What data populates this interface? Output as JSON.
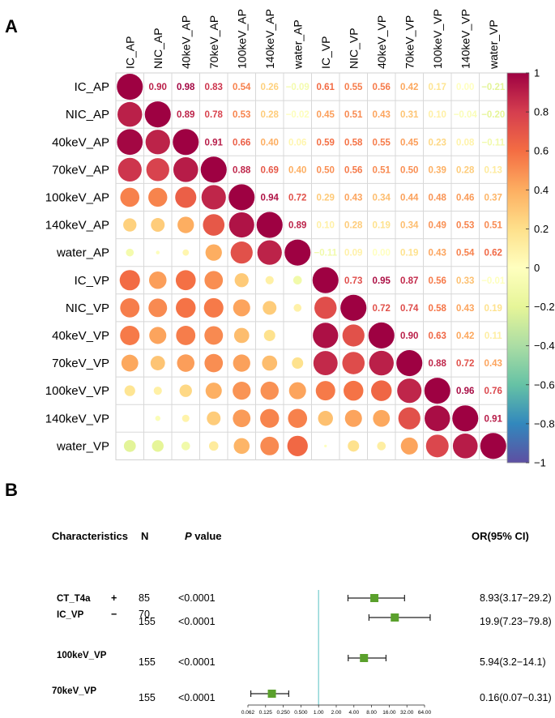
{
  "panel_a_label": "A",
  "panel_b_label": "B",
  "chart_data": [
    {
      "type": "heatmap",
      "subtype": "correlation-matrix-circles-lower-numbers-upper",
      "variables": [
        "IC_AP",
        "NIC_AP",
        "40keV_AP",
        "70keV_AP",
        "100keV_AP",
        "140keV_AP",
        "water_AP",
        "IC_VP",
        "NIC_VP",
        "40keV_VP",
        "70keV_VP",
        "100keV_VP",
        "140keV_VP",
        "water_VP"
      ],
      "matrix": [
        [
          1,
          0.9,
          0.98,
          0.83,
          0.54,
          0.26,
          -0.09,
          0.61,
          0.55,
          0.56,
          0.42,
          0.17,
          0.0,
          -0.21
        ],
        [
          0.9,
          1,
          0.89,
          0.78,
          0.53,
          0.28,
          -0.02,
          0.45,
          0.51,
          0.43,
          0.31,
          0.1,
          -0.04,
          -0.2
        ],
        [
          0.98,
          0.89,
          1,
          0.91,
          0.66,
          0.4,
          0.06,
          0.59,
          0.58,
          0.55,
          0.45,
          0.23,
          0.08,
          -0.11
        ],
        [
          0.83,
          0.78,
          0.91,
          1,
          0.88,
          0.69,
          0.4,
          0.5,
          0.56,
          0.51,
          0.5,
          0.39,
          0.28,
          0.13
        ],
        [
          0.54,
          0.53,
          0.66,
          0.88,
          1,
          0.94,
          0.72,
          0.29,
          0.43,
          0.34,
          0.44,
          0.48,
          0.46,
          0.37
        ],
        [
          0.26,
          0.28,
          0.4,
          0.69,
          0.94,
          1,
          0.89,
          0.1,
          0.28,
          0.19,
          0.34,
          0.49,
          0.53,
          0.51
        ],
        [
          -0.09,
          -0.02,
          0.06,
          0.4,
          0.72,
          0.89,
          1,
          -0.11,
          0.09,
          0.0,
          0.19,
          0.43,
          0.54,
          0.62
        ],
        [
          0.61,
          0.45,
          0.59,
          0.5,
          0.29,
          0.1,
          -0.11,
          1,
          0.73,
          0.95,
          0.87,
          0.56,
          0.33,
          -0.01
        ],
        [
          0.55,
          0.51,
          0.58,
          0.56,
          0.43,
          0.28,
          0.09,
          0.73,
          1,
          0.72,
          0.74,
          0.58,
          0.43,
          0.19
        ],
        [
          0.56,
          0.43,
          0.55,
          0.51,
          0.34,
          0.19,
          0.0,
          0.95,
          0.72,
          1,
          0.9,
          0.63,
          0.42,
          0.11
        ],
        [
          0.42,
          0.31,
          0.45,
          0.5,
          0.44,
          0.34,
          0.19,
          0.87,
          0.74,
          0.9,
          1,
          0.88,
          0.72,
          0.43
        ],
        [
          0.17,
          0.1,
          0.23,
          0.39,
          0.48,
          0.49,
          0.43,
          0.56,
          0.58,
          0.63,
          0.88,
          1,
          0.96,
          0.76
        ],
        [
          0.0,
          -0.04,
          0.08,
          0.28,
          0.46,
          0.53,
          0.54,
          0.33,
          0.43,
          0.42,
          0.72,
          0.96,
          1,
          0.91
        ],
        [
          -0.21,
          -0.2,
          -0.11,
          0.13,
          0.37,
          0.51,
          0.62,
          -0.01,
          0.19,
          0.11,
          0.43,
          0.76,
          0.91,
          1
        ]
      ],
      "colorbar": {
        "range": [
          -1,
          1
        ],
        "ticks": [
          1,
          0.8,
          0.6,
          0.4,
          0.2,
          0,
          -0.2,
          -0.4,
          -0.6,
          -0.8,
          -1
        ],
        "tick_labels": [
          "1",
          "0.8",
          "0.6",
          "0.4",
          "0.2",
          "0",
          "−0.2",
          "−0.4",
          "−0.6",
          "−0.8",
          "−1"
        ],
        "colors": [
          "#5e4fa2",
          "#3288bd",
          "#66c2a5",
          "#abdda4",
          "#e6f598",
          "#ffffbf",
          "#fee08b",
          "#fdae61",
          "#f46d43",
          "#d53e4f",
          "#9e0142"
        ]
      }
    },
    {
      "type": "forest",
      "headers": {
        "characteristics": "Characteristics",
        "n": "N",
        "p_letter": "P",
        "p_rest": " value",
        "or": "OR(95% CI)"
      },
      "rows": [
        {
          "label": "CT_T4a",
          "levels": [
            {
              "sign": "+",
              "n": "85"
            },
            {
              "sign": "−",
              "n": "70"
            }
          ],
          "p": "<0.0001",
          "or": 8.93,
          "lo": 3.17,
          "hi": 29.2,
          "or_text": "8.93(3.17−29.2)"
        },
        {
          "label": "IC_VP",
          "n": "155",
          "p": "<0.0001",
          "or": 19.9,
          "lo": 7.23,
          "hi": 79.8,
          "or_text": "19.9(7.23−79.8)"
        },
        {
          "label": "100keV_VP",
          "n": "155",
          "p": "<0.0001",
          "or": 5.94,
          "lo": 3.2,
          "hi": 14.1,
          "or_text": "5.94(3.2−14.1)"
        },
        {
          "label": "70keV_VP",
          "n": "155",
          "p": "<0.0001",
          "or": 0.16,
          "lo": 0.07,
          "hi": 0.31,
          "or_text": "0.16(0.07−0.31)"
        }
      ],
      "x_scale": "log2",
      "x_ticks": [
        0.0625,
        0.125,
        0.25,
        0.5,
        1,
        2,
        4,
        8,
        16,
        32,
        64
      ],
      "x_tick_labels": [
        "0.062",
        "0.125",
        "0.250",
        "0.500",
        "1.00",
        "2.00",
        "4.00",
        "8.00",
        "16.00",
        "32.00",
        "64.00"
      ],
      "reference_line": 1,
      "marker_color": "#5aa02c",
      "reference_line_color": "#7ecfd1"
    }
  ]
}
